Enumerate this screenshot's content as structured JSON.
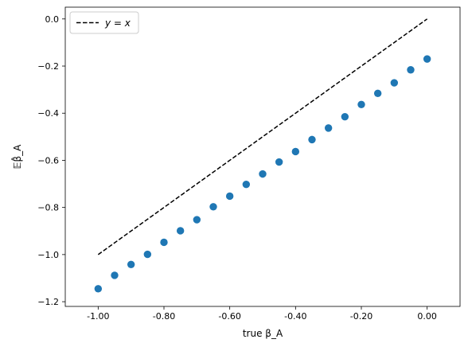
{
  "chart_data": {
    "type": "scatter",
    "title": "",
    "xlabel": "true β_A",
    "ylabel": "𝔼β̂_A",
    "xlim": [
      -1.1,
      0.1
    ],
    "ylim": [
      -1.22,
      0.05
    ],
    "x_ticks": [
      -1.0,
      -0.8,
      -0.6,
      -0.4,
      -0.2,
      0.0
    ],
    "x_tick_labels": [
      "-1.00",
      "-0.80",
      "-0.60",
      "-0.40",
      "-0.20",
      "0.00"
    ],
    "y_ticks": [
      0.0,
      -0.2,
      -0.4,
      -0.6,
      -0.8,
      -1.0,
      -1.2
    ],
    "y_tick_labels": [
      "0.0",
      "−0.2",
      "−0.4",
      "−0.6",
      "−0.8",
      "−1.0",
      "−1.2"
    ],
    "grid": false,
    "legend_position": "top-left",
    "series": [
      {
        "name": "y = x",
        "style": "dashed-line",
        "color": "#000000",
        "x": [
          -1.0,
          0.0
        ],
        "y": [
          -1.0,
          0.0
        ]
      },
      {
        "style": "markers",
        "color": "#1f77b4",
        "x": [
          -1.0,
          -0.95,
          -0.9,
          -0.85,
          -0.8,
          -0.75,
          -0.7,
          -0.65,
          -0.6,
          -0.55,
          -0.5,
          -0.45,
          -0.4,
          -0.35,
          -0.3,
          -0.25,
          -0.2,
          -0.15,
          -0.1,
          -0.05,
          0.0
        ],
        "y": [
          -1.145,
          -1.088,
          -1.042,
          -0.999,
          -0.948,
          -0.899,
          -0.852,
          -0.797,
          -0.752,
          -0.702,
          -0.658,
          -0.607,
          -0.563,
          -0.512,
          -0.463,
          -0.415,
          -0.363,
          -0.316,
          -0.271,
          -0.216,
          -0.17
        ]
      }
    ]
  }
}
